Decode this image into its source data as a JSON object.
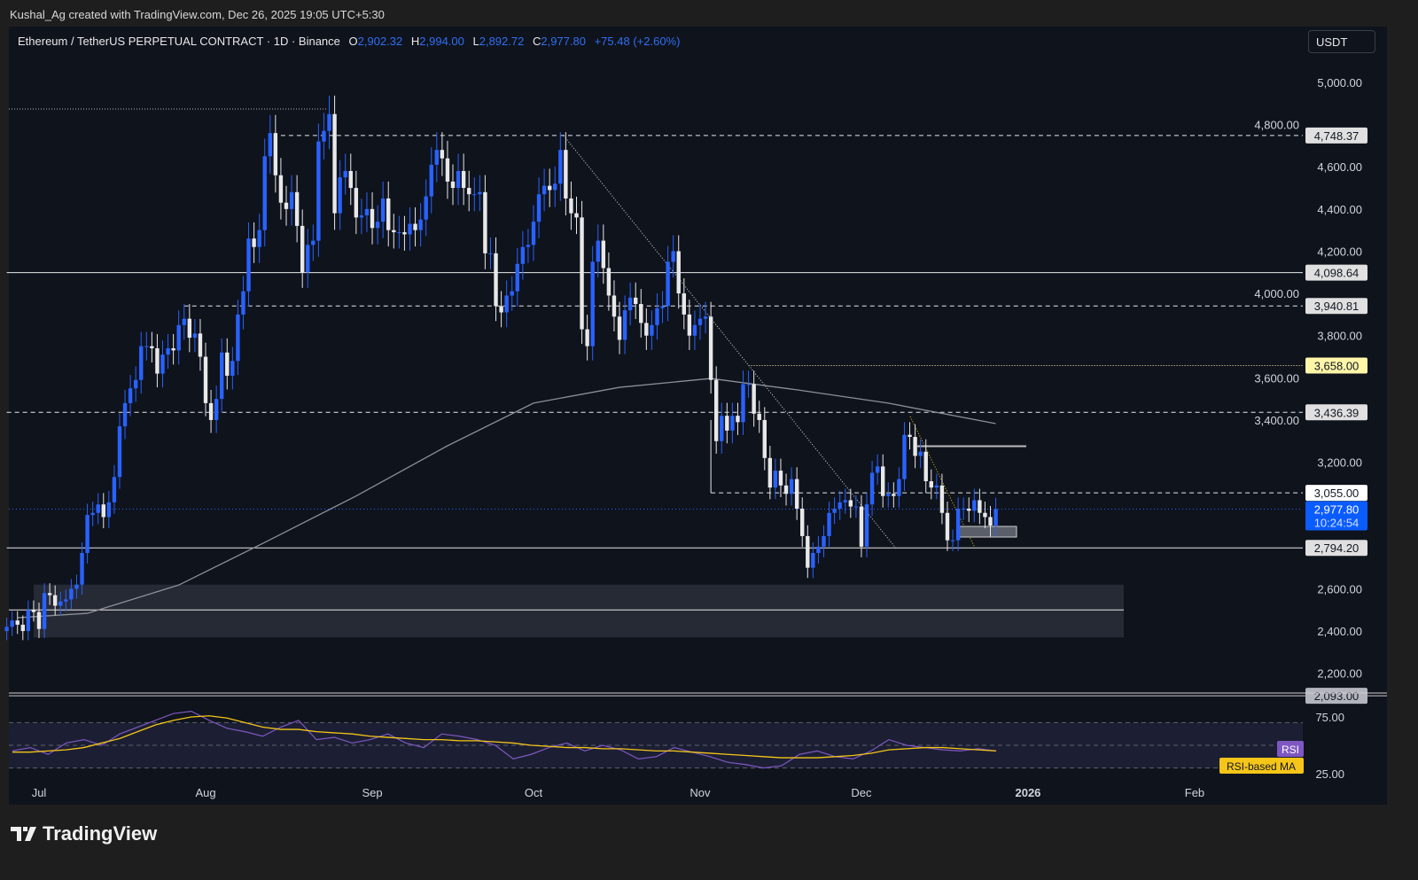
{
  "credit": "Kushal_Ag created with TradingView.com, Dec 26, 2025 19:05 UTC+5:30",
  "legend": {
    "symbol": "Ethereum / TetherUS PERPETUAL CONTRACT · 1D · Binance",
    "o_label": "O",
    "o": "2,902.32",
    "h_label": "H",
    "h": "2,994.00",
    "l_label": "L",
    "l": "2,892.72",
    "c_label": "C",
    "c": "2,977.80",
    "change": "+75.48 (+2.60%)"
  },
  "currency": "USDT",
  "brand": "TradingView",
  "colors": {
    "up": "#2962ff",
    "down": "#e8e8e8",
    "bg": "#0f131c",
    "accent": "#0b5cff",
    "ma": "#8c8f96",
    "rsi": "#7e57c2",
    "rsi_ma": "#f5c518",
    "yellow_level": "#fff6a8"
  },
  "chart_data": {
    "type": "candlestick",
    "title": "Ethereum / TetherUS PERPETUAL CONTRACT · 1D · Binance",
    "start_date": "2025-06-25",
    "closes": [
      2420,
      2450,
      2430,
      2400,
      2500,
      2490,
      2410,
      2580,
      2570,
      2520,
      2540,
      2550,
      2600,
      2620,
      2770,
      2950,
      2960,
      3000,
      2940,
      3010,
      3130,
      3370,
      3480,
      3550,
      3590,
      3750,
      3750,
      3740,
      3620,
      3710,
      3740,
      3730,
      3850,
      3880,
      3790,
      3810,
      3700,
      3480,
      3400,
      3500,
      3720,
      3610,
      3680,
      3900,
      4010,
      4260,
      4220,
      4300,
      4650,
      4760,
      4560,
      4430,
      4400,
      4480,
      4320,
      4100,
      4230,
      4250,
      4720,
      4770,
      4850,
      4380,
      4550,
      4580,
      4500,
      4360,
      4370,
      4400,
      4310,
      4340,
      4450,
      4300,
      4290,
      4290,
      4280,
      4330,
      4300,
      4350,
      4460,
      4610,
      4680,
      4640,
      4530,
      4500,
      4580,
      4500,
      4470,
      4470,
      4480,
      4190,
      4190,
      3940,
      3910,
      3990,
      4010,
      4140,
      4220,
      4230,
      4340,
      4470,
      4510,
      4490,
      4520,
      4680,
      4450,
      4380,
      4360,
      3830,
      3750,
      4150,
      4250,
      4120,
      3990,
      3890,
      3780,
      3920,
      3980,
      3950,
      3860,
      3800,
      3850,
      3930,
      3940,
      4150,
      4200,
      4000,
      3900,
      3800,
      3850,
      3880,
      3890,
      3590,
      3300,
      3420,
      3350,
      3420,
      3390,
      3570,
      3570,
      3430,
      3400,
      3220,
      3080,
      3160,
      3090,
      3050,
      3120,
      2980,
      2850,
      2700,
      2770,
      2800,
      2850,
      2960,
      2980,
      3010,
      3020,
      2990,
      2990,
      2800,
      3000,
      3150,
      3180,
      3040,
      3050,
      3040,
      3120,
      3330,
      3320,
      3230,
      3250,
      3110,
      3080,
      3090,
      2960,
      2830,
      2830,
      2980,
      2980,
      2970,
      3020,
      2960,
      2940,
      2900,
      2978
    ],
    "ma200": [
      [
        "2025-06-27",
        2463
      ],
      [
        "2025-07-10",
        2484
      ],
      [
        "2025-07-27",
        2618
      ],
      [
        "2025-08-12",
        2820
      ],
      [
        "2025-08-29",
        3040
      ],
      [
        "2025-09-15",
        3278
      ],
      [
        "2025-10-01",
        3480
      ],
      [
        "2025-10-17",
        3555
      ],
      [
        "2025-11-03",
        3597
      ],
      [
        "2025-11-19",
        3543
      ],
      [
        "2025-12-06",
        3480
      ],
      [
        "2025-12-26",
        3383
      ]
    ],
    "levels": [
      {
        "price": 4748.37,
        "label": "4,748.37",
        "style": "dashed",
        "from": "2025-08-15"
      },
      {
        "price": 4098.64,
        "label": "4,098.64",
        "style": "solid",
        "from": "2025-06-25"
      },
      {
        "price": 3940.81,
        "label": "3,940.81",
        "style": "dashed",
        "from": "2025-07-28"
      },
      {
        "price": 3658.0,
        "label": "3,658.00",
        "style": "dotted-yellow",
        "from": "2025-11-10"
      },
      {
        "price": 3436.39,
        "label": "3,436.39",
        "style": "dashed",
        "from": "2025-06-25"
      },
      {
        "price": 3055.0,
        "label": "3,055.00",
        "style": "dashed",
        "from": "2025-11-03"
      },
      {
        "price": 2794.2,
        "label": "2,794.20",
        "style": "solid",
        "from": "2025-06-25"
      },
      {
        "price": 2093.0,
        "label": "2,093.00",
        "style": "solid-gray",
        "from": "2025-06-25"
      }
    ],
    "current_price": {
      "value": 2977.8,
      "label": "2,977.80",
      "countdown": "10:24:54"
    },
    "y_ticks": [
      "5,000.00",
      "4,800.00",
      "4,600.00",
      "4,400.00",
      "4,200.00",
      "4,000.00",
      "3,800.00",
      "3,600.00",
      "3,400.00",
      "3,200.00",
      "2,600.00",
      "2,400.00",
      "2,200.00"
    ],
    "y_tick_values": [
      5000,
      4800,
      4600,
      4400,
      4200,
      4000,
      3800,
      3600,
      3400,
      3200,
      2600,
      2400,
      2200
    ],
    "x_ticks": [
      [
        "Jul",
        "2025-07-01"
      ],
      [
        "Aug",
        "2025-08-01"
      ],
      [
        "Sep",
        "2025-09-01"
      ],
      [
        "Oct",
        "2025-10-01"
      ],
      [
        "Nov",
        "2025-11-01"
      ],
      [
        "Dec",
        "2025-12-01"
      ],
      [
        "2026",
        "2026-01-01"
      ],
      [
        "Feb",
        "2026-02-01"
      ]
    ],
    "zones": [
      {
        "top": 2620,
        "bottom": 2500
      },
      {
        "top": 2500,
        "bottom": 2370
      }
    ],
    "rsi": {
      "label": "RSI",
      "ma_label": "RSI-based MA",
      "ticks": [
        "75.00",
        "25.00"
      ],
      "tick_values": [
        75,
        25
      ],
      "values": [
        45,
        48,
        42,
        52,
        55,
        50,
        60,
        66,
        72,
        78,
        80,
        72,
        65,
        62,
        58,
        66,
        72,
        55,
        57,
        52,
        55,
        60,
        52,
        48,
        60,
        58,
        55,
        50,
        38,
        42,
        48,
        52,
        45,
        50,
        46,
        38,
        40,
        48,
        44,
        40,
        35,
        33,
        30,
        32,
        42,
        45,
        40,
        38,
        45,
        55,
        50,
        48,
        46,
        45,
        47,
        45
      ],
      "ma": [
        44,
        44,
        45,
        46,
        48,
        52,
        56,
        62,
        68,
        72,
        75,
        76,
        74,
        70,
        66,
        64,
        64,
        62,
        61,
        60,
        58,
        57,
        56,
        55,
        55,
        54,
        54,
        53,
        52,
        50,
        49,
        48,
        48,
        47,
        47,
        46,
        45,
        45,
        44,
        43,
        42,
        41,
        40,
        39,
        39,
        39,
        40,
        41,
        43,
        46,
        47,
        48,
        48,
        47,
        46,
        45
      ]
    }
  }
}
